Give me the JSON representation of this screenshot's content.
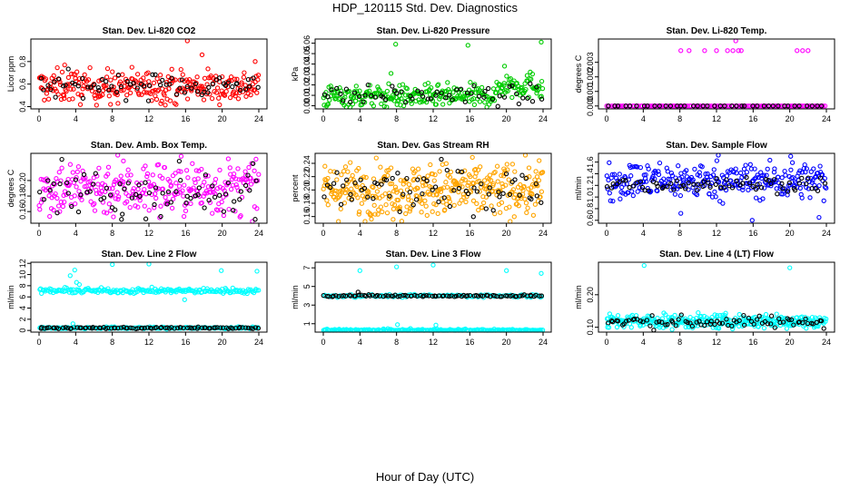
{
  "page": {
    "title": "HDP_120115  Std. Dev. Diagnostics",
    "x_title": "Hour of Day (UTC)"
  },
  "chart_data": [
    {
      "type": "scatter",
      "title": "Stan. Dev. Li-820 CO2",
      "ylabel": "Licor ppm",
      "color": "#ff0000",
      "xlim": [
        0,
        24
      ],
      "ylim": [
        0.38,
        1.0
      ],
      "xticks": [
        "0",
        "4",
        "8",
        "12",
        "16",
        "20",
        "24"
      ],
      "yticks": [
        {
          "v": 0.4,
          "label": "0.4"
        },
        {
          "v": 0.6,
          "label": "0.6"
        },
        {
          "v": 0.8,
          "label": "0.8"
        }
      ],
      "series": [
        {
          "color": "#ff0000",
          "n": 280,
          "base": 0.58,
          "spread": 0.08,
          "x": [
            0,
            24
          ]
        },
        {
          "color": "#000000",
          "n": 70,
          "base": 0.59,
          "spread": 0.06,
          "x": [
            0,
            24
          ]
        }
      ],
      "outliers": [
        {
          "x": 2.8,
          "y": 0.77,
          "color": "#ff0000"
        },
        {
          "x": 7.8,
          "y": 0.42,
          "color": "#ff0000"
        },
        {
          "x": 16.2,
          "y": 0.99,
          "color": "#ff0000"
        },
        {
          "x": 17.8,
          "y": 0.86,
          "color": "#ff0000"
        },
        {
          "x": 23.6,
          "y": 0.8,
          "color": "#ff0000"
        }
      ]
    },
    {
      "type": "scatter",
      "title": "Stan. Dev. Li-820 Pressure",
      "ylabel": "kPa",
      "color": "#00cc00",
      "xlim": [
        0,
        24
      ],
      "ylim": [
        -0.003,
        0.064
      ],
      "xticks": [
        "0",
        "4",
        "8",
        "12",
        "16",
        "20",
        "24"
      ],
      "yticks": [
        {
          "v": 0.0,
          "label": "0.00"
        },
        {
          "v": 0.01,
          "label": "0.01"
        },
        {
          "v": 0.02,
          "label": "0.02"
        },
        {
          "v": 0.03,
          "label": "0.03"
        },
        {
          "v": 0.04,
          "label": "0.04"
        },
        {
          "v": 0.05,
          "label": "0.05"
        },
        {
          "v": 0.06,
          "label": "0.06"
        }
      ],
      "series": [
        {
          "color": "#00cc00",
          "n": 230,
          "base": 0.009,
          "spread": 0.006,
          "x": [
            0,
            19
          ]
        },
        {
          "color": "#00cc00",
          "n": 60,
          "base": 0.02,
          "spread": 0.007,
          "x": [
            19,
            24
          ]
        },
        {
          "color": "#000000",
          "n": 60,
          "base": 0.01,
          "spread": 0.005,
          "x": [
            0,
            24
          ]
        }
      ],
      "outliers": [
        {
          "x": 7.9,
          "y": 0.059,
          "color": "#00cc00"
        },
        {
          "x": 15.8,
          "y": 0.058,
          "color": "#00cc00"
        },
        {
          "x": 23.8,
          "y": 0.061,
          "color": "#00cc00"
        },
        {
          "x": 19.8,
          "y": 0.038,
          "color": "#00cc00"
        },
        {
          "x": 7.4,
          "y": 0.031,
          "color": "#00cc00"
        }
      ]
    },
    {
      "type": "scatter",
      "title": "Stan. Dev. Li-820 Temp.",
      "ylabel": "degrees C",
      "color": "#ff00ff",
      "xlim": [
        0,
        24
      ],
      "ylim": [
        -0.0002,
        0.0046
      ],
      "xticks": [
        "0",
        "4",
        "8",
        "12",
        "16",
        "20",
        "24"
      ],
      "yticks": [
        {
          "v": 0.0,
          "label": "0.000"
        },
        {
          "v": 0.001,
          "label": "0.001"
        },
        {
          "v": 0.002,
          "label": "0.002"
        },
        {
          "v": 0.003,
          "label": "0.003"
        }
      ],
      "series": [
        {
          "color": "#ff00ff",
          "n": 120,
          "base": 0.0,
          "spread": 0.0,
          "x": [
            0,
            24
          ]
        },
        {
          "color": "#000000",
          "n": 40,
          "base": 0.0,
          "spread": 0.0,
          "x": [
            0,
            24
          ]
        }
      ],
      "outliers": [
        {
          "x": 8.1,
          "y": 0.0038,
          "color": "#ff00ff"
        },
        {
          "x": 9.0,
          "y": 0.0038,
          "color": "#ff00ff"
        },
        {
          "x": 10.7,
          "y": 0.0038,
          "color": "#ff00ff"
        },
        {
          "x": 12.0,
          "y": 0.0038,
          "color": "#ff00ff"
        },
        {
          "x": 13.2,
          "y": 0.0038,
          "color": "#ff00ff"
        },
        {
          "x": 13.8,
          "y": 0.0038,
          "color": "#ff00ff"
        },
        {
          "x": 14.1,
          "y": 0.0045,
          "color": "#ff00ff"
        },
        {
          "x": 14.4,
          "y": 0.0038,
          "color": "#ff00ff"
        },
        {
          "x": 14.7,
          "y": 0.0038,
          "color": "#ff00ff"
        },
        {
          "x": 20.8,
          "y": 0.0038,
          "color": "#ff00ff"
        },
        {
          "x": 21.4,
          "y": 0.0038,
          "color": "#ff00ff"
        },
        {
          "x": 22.0,
          "y": 0.0038,
          "color": "#ff00ff"
        }
      ]
    },
    {
      "type": "scatter",
      "title": "Stan. Dev. Amb. Box Temp.",
      "ylabel": "degrees C",
      "color": "#ff00ff",
      "xlim": [
        0,
        24
      ],
      "ylim": [
        0.145,
        0.235
      ],
      "xticks": [
        "0",
        "4",
        "8",
        "12",
        "16",
        "20",
        "24"
      ],
      "yticks": [
        {
          "v": 0.16,
          "label": "0.16"
        },
        {
          "v": 0.18,
          "label": "0.18"
        },
        {
          "v": 0.2,
          "label": "0.20"
        }
      ],
      "series": [
        {
          "color": "#ff00ff",
          "n": 300,
          "base": 0.19,
          "spread": 0.02,
          "x": [
            0,
            24
          ]
        },
        {
          "color": "#000000",
          "n": 70,
          "base": 0.185,
          "spread": 0.016,
          "x": [
            0,
            24
          ]
        }
      ],
      "outliers": [
        {
          "x": 8.6,
          "y": 0.233,
          "color": "#ff00ff"
        },
        {
          "x": 9.0,
          "y": 0.15,
          "color": "#000000"
        },
        {
          "x": 23.6,
          "y": 0.15,
          "color": "#000000"
        }
      ]
    },
    {
      "type": "scatter",
      "title": "Stan. Dev. Gas Stream RH",
      "ylabel": "percent",
      "color": "#ffa500",
      "xlim": [
        0,
        24
      ],
      "ylim": [
        0.15,
        0.255
      ],
      "xticks": [
        "0",
        "4",
        "8",
        "12",
        "16",
        "20",
        "24"
      ],
      "yticks": [
        {
          "v": 0.16,
          "label": "0.16"
        },
        {
          "v": 0.18,
          "label": "0.18"
        },
        {
          "v": 0.2,
          "label": "0.20"
        },
        {
          "v": 0.22,
          "label": "0.22"
        },
        {
          "v": 0.24,
          "label": "0.24"
        }
      ],
      "series": [
        {
          "color": "#ffa500",
          "n": 380,
          "base": 0.2,
          "spread": 0.022,
          "x": [
            0,
            24
          ]
        },
        {
          "color": "#000000",
          "n": 70,
          "base": 0.2,
          "spread": 0.018,
          "x": [
            0,
            24
          ]
        }
      ],
      "outliers": []
    },
    {
      "type": "scatter",
      "title": "Stan. Dev. Sample Flow",
      "ylabel": "ml/min",
      "color": "#0000ff",
      "xlim": [
        0,
        24
      ],
      "ylim": [
        0.55,
        1.75
      ],
      "xticks": [
        "0",
        "4",
        "8",
        "12",
        "16",
        "20",
        "24"
      ],
      "yticks": [
        {
          "v": 0.6,
          "label": "0.6"
        },
        {
          "v": 0.8,
          "label": "0.8"
        },
        {
          "v": 1.0,
          "label": "1.0"
        },
        {
          "v": 1.2,
          "label": "1.2"
        },
        {
          "v": 1.4,
          "label": "1.4"
        },
        {
          "v": 1.6,
          "label": "1.6"
        }
      ],
      "series": [
        {
          "color": "#0000ff",
          "n": 300,
          "base": 1.28,
          "spread": 0.17,
          "x": [
            0,
            24
          ]
        },
        {
          "color": "#000000",
          "n": 70,
          "base": 1.22,
          "spread": 0.07,
          "x": [
            0,
            24
          ]
        }
      ],
      "outliers": [
        {
          "x": 8.1,
          "y": 0.72,
          "color": "#0000ff"
        },
        {
          "x": 15.9,
          "y": 0.6,
          "color": "#0000ff"
        },
        {
          "x": 23.2,
          "y": 0.65,
          "color": "#0000ff"
        },
        {
          "x": 12.2,
          "y": 1.72,
          "color": "#0000ff"
        },
        {
          "x": 20.1,
          "y": 1.7,
          "color": "#0000ff"
        }
      ]
    },
    {
      "type": "scatter",
      "title": "Stan. Dev. Line 2 Flow",
      "ylabel": "ml/min",
      "color": "#00ffff",
      "xlim": [
        0,
        24
      ],
      "ylim": [
        -0.3,
        12.2
      ],
      "xticks": [
        "0",
        "4",
        "8",
        "12",
        "16",
        "20",
        "24"
      ],
      "yticks": [
        {
          "v": 0,
          "label": "0"
        },
        {
          "v": 2,
          "label": "2"
        },
        {
          "v": 4,
          "label": "4"
        },
        {
          "v": 6,
          "label": "6"
        },
        {
          "v": 8,
          "label": "8"
        },
        {
          "v": 10,
          "label": "10"
        },
        {
          "v": 12,
          "label": "12"
        }
      ],
      "series": [
        {
          "color": "#00ffff",
          "n": 200,
          "base": 7.1,
          "spread": 0.25,
          "x": [
            0,
            24
          ]
        },
        {
          "color": "#00ffff",
          "n": 200,
          "base": 0.45,
          "spread": 0.1,
          "x": [
            0,
            24
          ]
        },
        {
          "color": "#000000",
          "n": 90,
          "base": 0.45,
          "spread": 0.08,
          "x": [
            0,
            24
          ]
        }
      ],
      "outliers": [
        {
          "x": 3.4,
          "y": 9.8,
          "color": "#00ffff"
        },
        {
          "x": 3.9,
          "y": 10.8,
          "color": "#00ffff"
        },
        {
          "x": 4.1,
          "y": 8.6,
          "color": "#00ffff"
        },
        {
          "x": 4.4,
          "y": 8.2,
          "color": "#00ffff"
        },
        {
          "x": 3.7,
          "y": 1.2,
          "color": "#00ffff"
        },
        {
          "x": 8.0,
          "y": 11.8,
          "color": "#00ffff"
        },
        {
          "x": 12.0,
          "y": 11.9,
          "color": "#00ffff"
        },
        {
          "x": 15.9,
          "y": 5.5,
          "color": "#00ffff"
        },
        {
          "x": 19.9,
          "y": 10.7,
          "color": "#00ffff"
        },
        {
          "x": 23.8,
          "y": 10.6,
          "color": "#00ffff"
        }
      ]
    },
    {
      "type": "scatter",
      "title": "Stan. Dev. Line 3 Flow",
      "ylabel": "ml/min",
      "color": "#00ffff",
      "xlim": [
        0,
        24
      ],
      "ylim": [
        0.1,
        7.6
      ],
      "xticks": [
        "0",
        "4",
        "8",
        "12",
        "16",
        "20",
        "24"
      ],
      "yticks": [
        {
          "v": 1,
          "label": "1"
        },
        {
          "v": 3,
          "label": "3"
        },
        {
          "v": 5,
          "label": "5"
        },
        {
          "v": 7,
          "label": "7"
        }
      ],
      "series": [
        {
          "color": "#00ffff",
          "n": 200,
          "base": 0.3,
          "spread": 0.07,
          "x": [
            0,
            24
          ]
        },
        {
          "color": "#00ffff",
          "n": 120,
          "base": 4.0,
          "spread": 0.08,
          "x": [
            0,
            24
          ]
        },
        {
          "color": "#000000",
          "n": 90,
          "base": 4.0,
          "spread": 0.06,
          "x": [
            0,
            24
          ]
        }
      ],
      "outliers": [
        {
          "x": 4.0,
          "y": 6.7,
          "color": "#00ffff"
        },
        {
          "x": 8.0,
          "y": 7.1,
          "color": "#00ffff"
        },
        {
          "x": 12.0,
          "y": 7.3,
          "color": "#00ffff"
        },
        {
          "x": 20.0,
          "y": 6.7,
          "color": "#00ffff"
        },
        {
          "x": 23.8,
          "y": 6.4,
          "color": "#00ffff"
        },
        {
          "x": 8.1,
          "y": 0.9,
          "color": "#00ffff"
        },
        {
          "x": 12.3,
          "y": 0.85,
          "color": "#00ffff"
        },
        {
          "x": 3.8,
          "y": 4.4,
          "color": "#000000"
        }
      ]
    },
    {
      "type": "scatter",
      "title": "Stan. Dev. Line 4 (LT) Flow",
      "ylabel": "ml/min",
      "color": "#00ffff",
      "xlim": [
        0,
        24
      ],
      "ylim": [
        0.085,
        0.3
      ],
      "xticks": [
        "0",
        "4",
        "8",
        "12",
        "16",
        "20",
        "24"
      ],
      "yticks": [
        {
          "v": 0.1,
          "label": "0.10"
        },
        {
          "v": 0.2,
          "label": "0.20"
        }
      ],
      "series": [
        {
          "color": "#00ffff",
          "n": 320,
          "base": 0.118,
          "spread": 0.012,
          "x": [
            0,
            24
          ]
        },
        {
          "color": "#000000",
          "n": 80,
          "base": 0.116,
          "spread": 0.01,
          "x": [
            0,
            24
          ]
        }
      ],
      "outliers": [
        {
          "x": 4.1,
          "y": 0.29,
          "color": "#00ffff"
        },
        {
          "x": 20.0,
          "y": 0.283,
          "color": "#00ffff"
        },
        {
          "x": 0.1,
          "y": 0.1,
          "color": "#00ffff"
        }
      ]
    }
  ]
}
